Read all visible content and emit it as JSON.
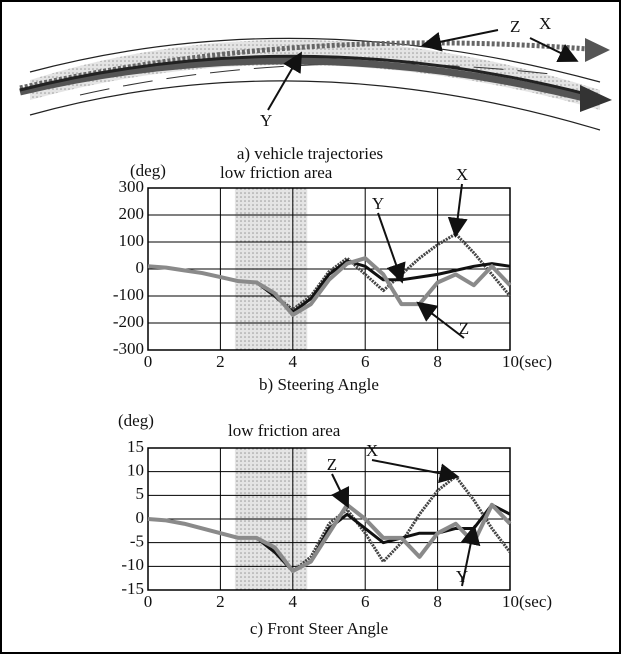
{
  "figure": {
    "caption": "a)  vehicle trajectories",
    "labels": [
      "X",
      "Y",
      "Z"
    ]
  },
  "chart_data": [
    {
      "type": "line",
      "caption": "b)  Steering  Angle",
      "y_unit": "(deg)",
      "annotation": "low friction area",
      "highlight_range": [
        2.4,
        4.4
      ],
      "x": [
        0,
        0.5,
        1,
        1.5,
        2,
        2.5,
        3,
        3.5,
        4,
        4.5,
        5,
        5.5,
        6,
        6.5,
        7,
        7.5,
        8,
        8.5,
        9,
        9.5,
        10
      ],
      "series": [
        {
          "name": "X",
          "color": "#444444",
          "values": [
            10,
            5,
            -5,
            -15,
            -30,
            -45,
            -50,
            -100,
            -150,
            -100,
            -10,
            40,
            -20,
            -80,
            -20,
            40,
            90,
            130,
            60,
            -20,
            -100
          ]
        },
        {
          "name": "Y",
          "color": "#111111",
          "values": [
            10,
            5,
            -5,
            -15,
            -30,
            -45,
            -50,
            -100,
            -160,
            -110,
            -20,
            30,
            10,
            -40,
            -40,
            -30,
            -20,
            -5,
            10,
            20,
            10
          ]
        },
        {
          "name": "Z",
          "color": "#8a8a8a",
          "values": [
            10,
            5,
            -5,
            -15,
            -30,
            -45,
            -50,
            -90,
            -170,
            -130,
            -40,
            20,
            40,
            -20,
            -130,
            -130,
            -50,
            -20,
            -60,
            10,
            -60
          ]
        }
      ],
      "xlim": [
        0,
        10
      ],
      "xticks": [
        0,
        2,
        4,
        6,
        8,
        {
          "value": 10,
          "label": "10(sec)"
        }
      ],
      "ylim": [
        -300,
        300
      ],
      "yticks": [
        -300,
        -200,
        -100,
        0,
        100,
        200,
        300
      ],
      "grid": true
    },
    {
      "type": "line",
      "caption": "c)  Front Steer Angle",
      "y_unit": "(deg)",
      "annotation": "low friction area",
      "highlight_range": [
        2.4,
        4.4
      ],
      "x": [
        0,
        0.5,
        1,
        1.5,
        2,
        2.5,
        3,
        3.5,
        4,
        4.5,
        5,
        5.5,
        6,
        6.5,
        7,
        7.5,
        8,
        8.5,
        9,
        9.5,
        10
      ],
      "series": [
        {
          "name": "X",
          "color": "#444444",
          "values": [
            0,
            -0.3,
            -1,
            -2,
            -3,
            -4,
            -4,
            -6,
            -11,
            -8,
            -1,
            2,
            -3,
            -9,
            -5,
            1,
            6,
            9,
            4,
            -2,
            -7
          ]
        },
        {
          "name": "Y",
          "color": "#111111",
          "values": [
            0,
            -0.3,
            -1,
            -2,
            -3,
            -4,
            -4,
            -7,
            -11,
            -9,
            -2,
            1,
            -2,
            -5,
            -4,
            -3,
            -3,
            -2,
            -2,
            3,
            1
          ]
        },
        {
          "name": "Z",
          "color": "#8a8a8a",
          "values": [
            0,
            -0.3,
            -1,
            -2,
            -3,
            -4,
            -4,
            -6,
            -11,
            -9,
            -3,
            3,
            0,
            -4,
            -4,
            -8,
            -3,
            -1,
            -5,
            3,
            -1
          ]
        }
      ],
      "xlim": [
        0,
        10
      ],
      "xticks": [
        0,
        2,
        4,
        6,
        8,
        {
          "value": 10,
          "label": "10(sec)"
        }
      ],
      "ylim": [
        -15,
        15
      ],
      "yticks": [
        -15,
        -10,
        -5,
        0,
        5,
        10,
        15
      ],
      "grid": true
    }
  ]
}
